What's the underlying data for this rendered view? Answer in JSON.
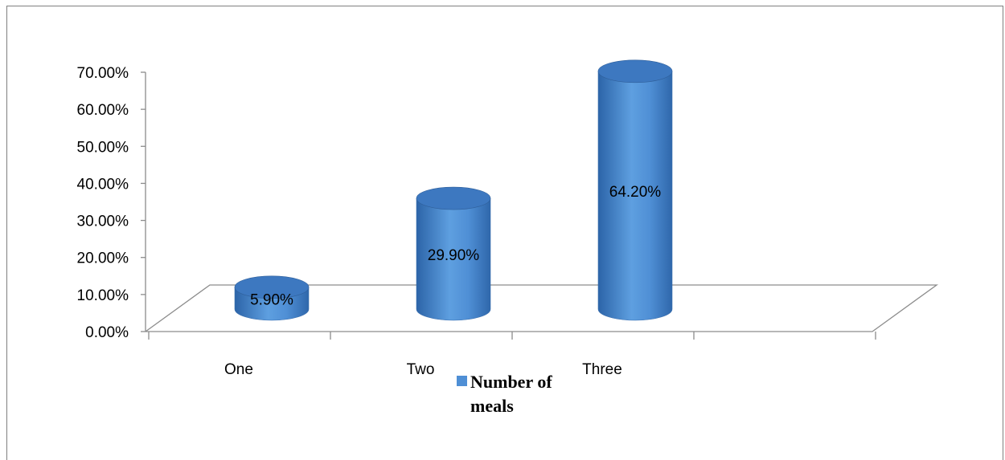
{
  "chart_data": {
    "type": "bar",
    "style": "3d-cylinder",
    "categories": [
      "One",
      "Two",
      "Three"
    ],
    "series": [
      {
        "name": "Number of meals",
        "values": [
          5.9,
          29.9,
          64.2
        ],
        "color": "#4f8fd5"
      }
    ],
    "data_labels": [
      "5.90%",
      "29.90%",
      "64.20%"
    ],
    "ylim": [
      0,
      70
    ],
    "yticks": [
      "0.00%",
      "10.00%",
      "20.00%",
      "30.00%",
      "40.00%",
      "50.00%",
      "60.00%",
      "70.00%"
    ],
    "legend": {
      "position": "bottom",
      "lines": [
        "Number of",
        "meals"
      ]
    },
    "grid": false
  }
}
